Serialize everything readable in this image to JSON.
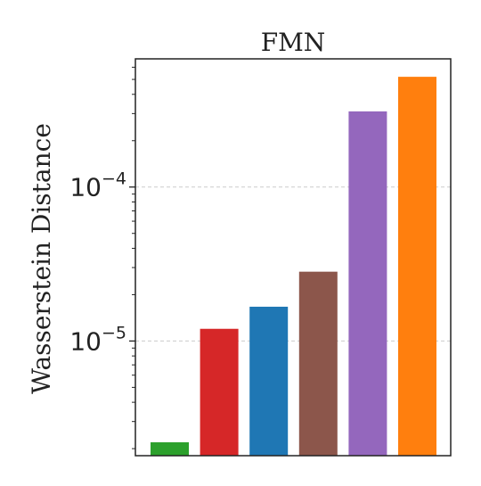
{
  "chart_data": {
    "type": "bar",
    "title": "FMN",
    "xlabel": "",
    "ylabel": "Wasserstein Distance",
    "yscale": "log",
    "ylim": [
      1.8e-06,
      0.00068
    ],
    "grid": {
      "y": true,
      "x": false,
      "style": "dashed",
      "color": "#cccccc"
    },
    "yticks": [
      {
        "value": 1e-05,
        "base": "10",
        "exponent": "−5"
      },
      {
        "value": 0.0001,
        "base": "10",
        "exponent": "−4"
      }
    ],
    "categories": [
      "",
      "",
      "",
      "",
      "",
      ""
    ],
    "values": [
      2.2e-06,
      1.2e-05,
      1.67e-05,
      2.82e-05,
      0.00031,
      0.00052
    ],
    "colors": [
      "#2ca02c",
      "#d62728",
      "#1f77b4",
      "#8c564b",
      "#9467bd",
      "#ff7f0e"
    ]
  }
}
